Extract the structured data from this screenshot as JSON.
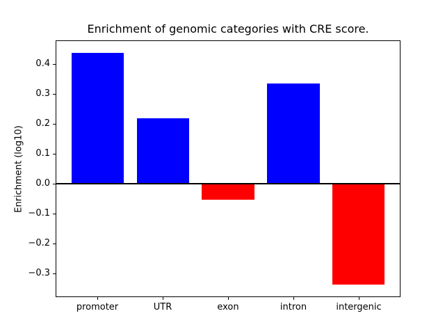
{
  "chart_data": {
    "type": "bar",
    "title": "Enrichment of genomic categories with CRE score.",
    "ylabel": "Enrichment (log10)",
    "xlabel": "",
    "categories": [
      "promoter",
      "UTR",
      "exon",
      "intron",
      "intergenic"
    ],
    "values": [
      0.437,
      0.219,
      -0.054,
      0.334,
      -0.338
    ],
    "bar_colors": [
      "#0000ff",
      "#0000ff",
      "#ff0000",
      "#0000ff",
      "#ff0000"
    ],
    "positive_color": "#0000ff",
    "negative_color": "#ff0000",
    "ylim": [
      -0.379,
      0.479
    ],
    "yticks": [
      0.4,
      0.3,
      0.2,
      0.1,
      0.0,
      -0.1,
      -0.2,
      -0.3
    ],
    "ytick_labels": [
      "0.4",
      "0.3",
      "0.2",
      "0.1",
      "0.0",
      "−0.1",
      "−0.2",
      "−0.3"
    ],
    "bar_width_fraction": 0.8,
    "grid": false,
    "legend": "none",
    "zero_line": true,
    "axis_color": "#000000",
    "background_color": "#ffffff"
  }
}
